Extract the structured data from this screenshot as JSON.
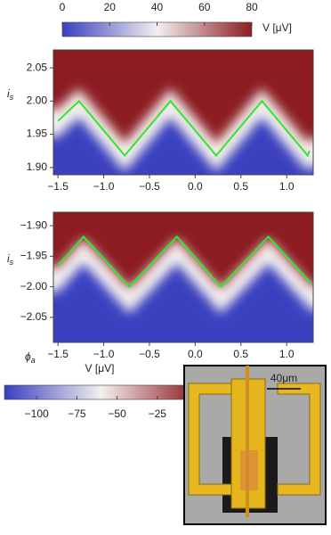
{
  "colorbars": [
    {
      "clim": [
        0,
        80
      ],
      "ticks": [
        0,
        20,
        40,
        60,
        80
      ],
      "label": "V [μV]",
      "colors": [
        "#3a3fbf",
        "#f3efee",
        "#8c1c22"
      ]
    },
    {
      "clim": [
        -120,
        0
      ],
      "ticks": [
        {
          "value": -100,
          "label": "−100"
        },
        {
          "value": -75,
          "label": "−75"
        },
        {
          "value": -50,
          "label": "−50"
        },
        {
          "value": -25,
          "label": "−25"
        }
      ],
      "label": "V [μV]",
      "colors": [
        "#3a3fbf",
        "#f3efee",
        "#8c1c22"
      ]
    }
  ],
  "chart_data": [
    {
      "type": "heatmap",
      "colors": [
        "#3a3fbf",
        "#f3efee",
        "#8c1c22"
      ],
      "ylabel": {
        "symbol": "i",
        "subscript": "s"
      },
      "xlim": [
        -1.55,
        1.29
      ],
      "ylim": [
        1.889,
        2.077
      ],
      "xticks": [
        {
          "value": -1.5,
          "label": "−1.5"
        },
        {
          "value": -1,
          "label": "−1.0"
        },
        {
          "value": -0.5,
          "label": "−0.5"
        },
        {
          "value": 0,
          "label": "0.0"
        },
        0.5,
        {
          "value": 1,
          "label": "1.0"
        }
      ],
      "yticks": [
        {
          "value": 1.9,
          "label": "1.90"
        },
        1.95,
        {
          "value": 2,
          "label": "2.00"
        },
        2.05
      ],
      "line": {
        "color": "#2ee82e",
        "x": [
          -1.5,
          -1.27,
          -0.77,
          -0.27,
          0.23,
          0.73,
          1.23,
          1.25
        ],
        "values": [
          1.97,
          2.0,
          1.918,
          2.0,
          1.918,
          2.0,
          1.918,
          1.925
        ]
      }
    },
    {
      "type": "heatmap",
      "colors": [
        "#3a3fbf",
        "#f3efee",
        "#8c1c22"
      ],
      "ylabel": {
        "symbol": "i",
        "subscript": "s"
      },
      "xlabel": {
        "symbol": "ϕ",
        "subscript": "a"
      },
      "xlim": [
        -1.55,
        1.29
      ],
      "ylim": [
        -2.091,
        -1.878
      ],
      "xticks": [
        {
          "value": -1.5,
          "label": "−1.5"
        },
        {
          "value": -1,
          "label": "−1.0"
        },
        {
          "value": -0.5,
          "label": "−0.5"
        },
        {
          "value": 0,
          "label": "0.0"
        },
        0.5,
        {
          "value": 1,
          "label": "1.0"
        }
      ],
      "yticks": [
        {
          "value": -1.9,
          "label": "−1.90"
        },
        {
          "value": -1.95,
          "label": "−1.95"
        },
        {
          "value": -2,
          "label": "−2.00"
        },
        {
          "value": -2.05,
          "label": "−2.05"
        }
      ],
      "line": {
        "color": "#2ee82e",
        "x": [
          -1.5,
          -1.22,
          -0.72,
          -0.2,
          0.28,
          0.8,
          1.27
        ],
        "values": [
          -1.965,
          -1.918,
          -2.0,
          -1.918,
          -2.0,
          -1.918,
          -1.995
        ]
      }
    }
  ],
  "inset": {
    "scale_label": "40μm"
  }
}
